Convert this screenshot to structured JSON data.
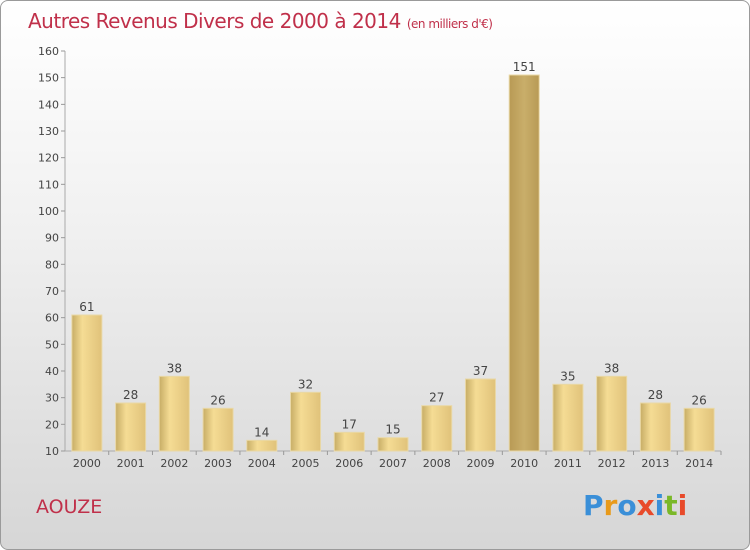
{
  "title": "Autres Revenus Divers de 2000 à 2014",
  "subtitle": "(en milliers d'€)",
  "commune": "AOUZE",
  "logo": {
    "letters": [
      "P",
      "r",
      "o",
      "x",
      "i",
      "t",
      "i"
    ],
    "colors": [
      "#3a8fd8",
      "#e89a1a",
      "#3a8fd8",
      "#e84a2a",
      "#3a8fd8",
      "#7ab828",
      "#e84a2a"
    ]
  },
  "colors": {
    "title": "#c0304a",
    "bar_light": "#f5dc94",
    "bar_dark": "#c7ad66",
    "axis": "#999999"
  },
  "chart_data": {
    "type": "bar",
    "categories": [
      "2000",
      "2001",
      "2002",
      "2003",
      "2004",
      "2005",
      "2006",
      "2007",
      "2008",
      "2009",
      "2010",
      "2011",
      "2012",
      "2013",
      "2014"
    ],
    "values": [
      61,
      28,
      38,
      26,
      14,
      32,
      17,
      15,
      27,
      37,
      151,
      35,
      38,
      28,
      26
    ],
    "ylim": [
      10,
      160
    ],
    "yticks": [
      10,
      20,
      30,
      40,
      50,
      60,
      70,
      80,
      90,
      100,
      110,
      120,
      130,
      140,
      150,
      160
    ],
    "grid": false,
    "data_labels": true
  }
}
